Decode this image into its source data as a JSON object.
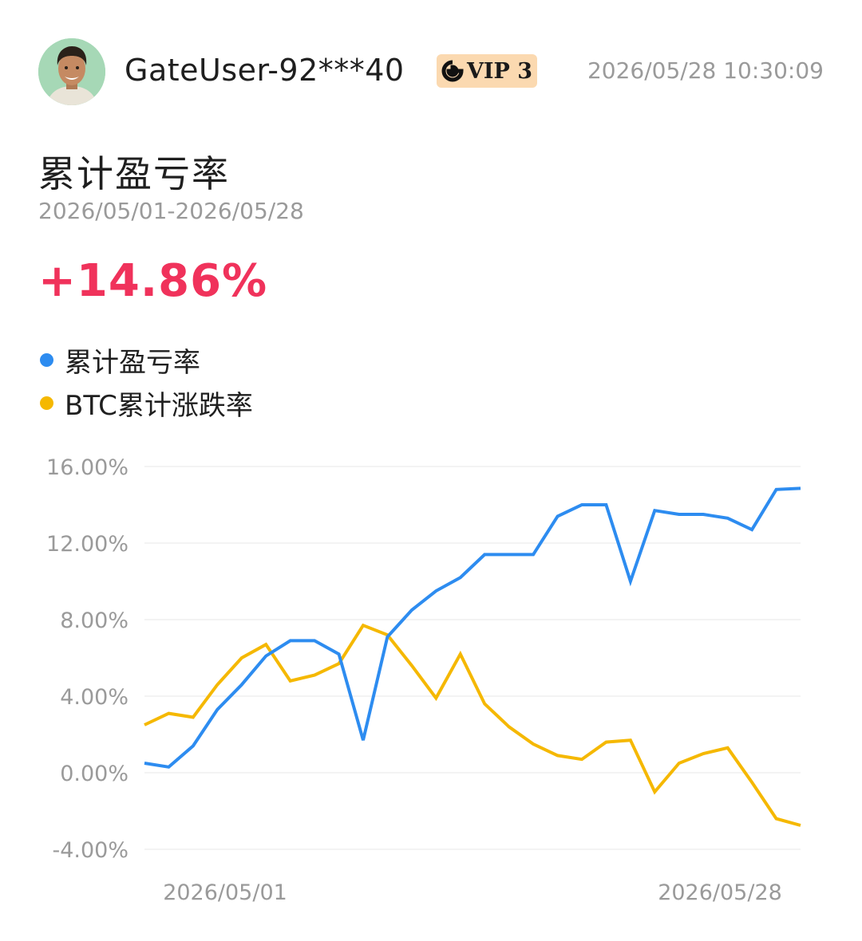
{
  "user": {
    "name": "GateUser-92***40",
    "vip_label": "VIP 3",
    "timestamp": "2026/05/28 10:30:09"
  },
  "summary": {
    "title": "累计盈亏率",
    "date_range": "2026/05/01-2026/05/28",
    "value": "+14.86%"
  },
  "colors": {
    "pnl_series": "#2d8cf0",
    "btc_series": "#f5b800",
    "positive": "#f0325b",
    "axis_text": "#9a9a9a",
    "grid": "#efefef"
  },
  "icons": {
    "vip": "gate-logo-icon",
    "avatar": "user-avatar"
  },
  "chart_data": {
    "type": "line",
    "title": "",
    "xlabel": "",
    "ylabel": "",
    "x_tick_labels": [
      "2026/05/01",
      "2026/05/28"
    ],
    "y_ticks": [
      16,
      12,
      8,
      4,
      0,
      -4
    ],
    "y_tick_labels": [
      "16.00%",
      "12.00%",
      "8.00%",
      "4.00%",
      "0.00%",
      "-4.00%"
    ],
    "ylim": [
      -4,
      16
    ],
    "grid": true,
    "legend_position": "top-left",
    "series": [
      {
        "name": "累计盈亏率",
        "color": "#2d8cf0",
        "values": [
          0.5,
          0.3,
          1.4,
          3.3,
          4.6,
          6.1,
          6.9,
          6.9,
          6.2,
          1.7,
          7.1,
          8.5,
          9.5,
          10.2,
          11.4,
          11.4,
          11.4,
          13.4,
          14.0,
          14.0,
          10.0,
          13.7,
          13.5,
          13.5,
          13.3,
          12.7,
          14.8,
          14.86
        ]
      },
      {
        "name": "BTC累计涨跌率",
        "color": "#f5b800",
        "values": [
          2.5,
          3.1,
          2.9,
          4.6,
          6.0,
          6.7,
          4.8,
          5.1,
          5.7,
          7.7,
          7.2,
          5.6,
          3.9,
          6.2,
          3.6,
          2.4,
          1.5,
          0.9,
          0.7,
          1.6,
          1.7,
          -1.0,
          0.5,
          1.0,
          1.3,
          -0.5,
          -2.4,
          -2.75
        ]
      }
    ]
  }
}
